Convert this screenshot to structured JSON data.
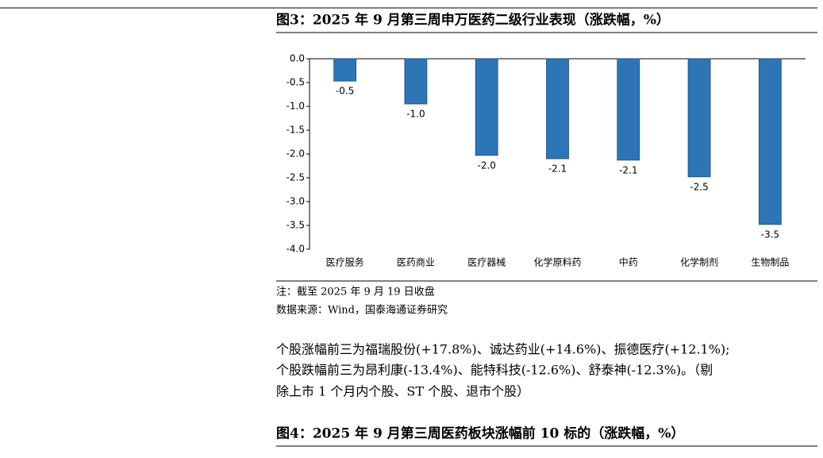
{
  "figure3_title": "图3：2025 年 9 月第三周申万医药二级行业表现（涨跌幅，%）",
  "chart_data": {
    "type": "bar",
    "categories": [
      "医疗服务",
      "医药商业",
      "医疗器械",
      "化学原料药",
      "中药",
      "化学制剂",
      "生物制品"
    ],
    "values": [
      -0.47,
      -0.95,
      -2.03,
      -2.1,
      -2.13,
      -2.48,
      -3.48
    ],
    "value_labels": [
      "-0.5",
      "-1.0",
      "-2.0",
      "-2.1",
      "-2.1",
      "-2.5",
      "-3.5"
    ],
    "color": "#2e75b6",
    "ylim": [
      -4,
      0
    ],
    "yticks": [
      {
        "value": 0,
        "label": "0.0"
      },
      {
        "value": -0.5,
        "label": "-0.5"
      },
      {
        "value": -1,
        "label": "-1.0"
      },
      {
        "value": -1.5,
        "label": "-1.5"
      },
      {
        "value": -2,
        "label": "-2.0"
      },
      {
        "value": -2.5,
        "label": "-2.5"
      },
      {
        "value": -3,
        "label": "-3.0"
      },
      {
        "value": -3.5,
        "label": "-3.5"
      },
      {
        "value": -4,
        "label": "-4.0"
      }
    ],
    "grid": false
  },
  "note": "注：截至 2025 年 9 月 19 日收盘",
  "source": "数据来源：Wind，国泰海通证券研究",
  "paragraph": [
    "个股涨幅前三为福瑞股份(+17.8%)、诚达药业(+14.6%)、振德医疗(+12.1%);",
    "个股跌幅前三为昂利康(-13.4%)、能特科技(-12.6%)、舒泰神(-12.3%)。（剔",
    "除上市 1 个月内个股、ST 个股、退市个股）"
  ],
  "figure4_title": "图4：2025 年 9 月第三周医药板块涨幅前 10 标的（涨跌幅，%）"
}
